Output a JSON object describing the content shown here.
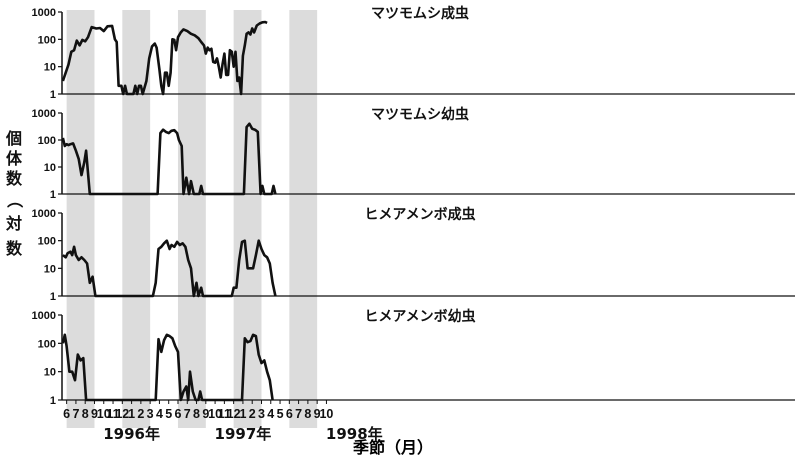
{
  "chart_data": {
    "type": "line",
    "y_scale": "log",
    "ylim": [
      1,
      1000
    ],
    "yticks": [
      1,
      10,
      100,
      1000
    ],
    "ylabel": "個体数（対数）",
    "xlabel": "季節（月）",
    "x_tick_labels": [
      "6",
      "7",
      "8",
      "9",
      "10",
      "11",
      "12",
      "1",
      "2",
      "3",
      "4",
      "5",
      "6",
      "7",
      "8",
      "9",
      "10",
      "11",
      "12",
      "1",
      "2",
      "3",
      "4",
      "5",
      "6",
      "7",
      "8",
      "9",
      "10"
    ],
    "year_labels": [
      "1996年",
      "1997年",
      "1998年"
    ],
    "shaded_months": [
      "1996-06..1996-08",
      "1996-12..1997-02",
      "1997-06..1997-08",
      "1997-12..1998-02",
      "1998-06..1998-08"
    ],
    "panels": [
      {
        "title": "マツモムシ成虫",
        "points": [
          [
            5.6,
            3
          ],
          [
            5.9,
            6
          ],
          [
            6.2,
            12
          ],
          [
            6.5,
            35
          ],
          [
            6.8,
            40
          ],
          [
            7.1,
            90
          ],
          [
            7.4,
            60
          ],
          [
            7.7,
            95
          ],
          [
            8.0,
            85
          ],
          [
            8.3,
            120
          ],
          [
            8.7,
            280
          ],
          [
            9.2,
            250
          ],
          [
            9.6,
            260
          ],
          [
            10.0,
            200
          ],
          [
            10.4,
            300
          ],
          [
            10.9,
            310
          ],
          [
            11.2,
            100
          ],
          [
            11.4,
            80
          ],
          [
            11.6,
            2
          ],
          [
            11.9,
            2
          ],
          [
            12.1,
            1
          ],
          [
            12.3,
            2
          ],
          [
            12.5,
            1
          ],
          [
            13.2,
            1
          ],
          [
            13.4,
            2
          ],
          [
            13.6,
            1
          ],
          [
            13.8,
            2
          ],
          [
            14.0,
            2
          ],
          [
            14.2,
            1
          ],
          [
            14.6,
            3
          ],
          [
            14.9,
            20
          ],
          [
            15.2,
            55
          ],
          [
            15.5,
            70
          ],
          [
            15.7,
            50
          ],
          [
            16.0,
            8
          ],
          [
            16.2,
            2
          ],
          [
            16.4,
            1
          ],
          [
            16.6,
            6
          ],
          [
            16.8,
            6
          ],
          [
            17.0,
            2
          ],
          [
            17.2,
            6
          ],
          [
            17.4,
            100
          ],
          [
            17.6,
            95
          ],
          [
            17.8,
            40
          ],
          [
            18.0,
            120
          ],
          [
            18.3,
            180
          ],
          [
            18.6,
            230
          ],
          [
            19.0,
            200
          ],
          [
            19.4,
            160
          ],
          [
            19.8,
            140
          ],
          [
            20.2,
            110
          ],
          [
            20.5,
            80
          ],
          [
            20.8,
            60
          ],
          [
            21.0,
            30
          ],
          [
            21.2,
            50
          ],
          [
            21.4,
            40
          ],
          [
            21.6,
            45
          ],
          [
            21.8,
            15
          ],
          [
            22.0,
            14
          ],
          [
            22.2,
            20
          ],
          [
            22.4,
            10
          ],
          [
            22.6,
            4
          ],
          [
            22.8,
            12
          ],
          [
            23.0,
            30
          ],
          [
            23.2,
            5
          ],
          [
            23.4,
            5
          ],
          [
            23.6,
            40
          ],
          [
            23.8,
            35
          ],
          [
            24.0,
            10
          ],
          [
            24.2,
            35
          ],
          [
            24.4,
            3
          ],
          [
            24.6,
            4
          ],
          [
            24.8,
            1
          ],
          [
            25.0,
            25
          ],
          [
            25.2,
            60
          ],
          [
            25.4,
            160
          ],
          [
            25.6,
            180
          ],
          [
            25.8,
            150
          ],
          [
            26.0,
            250
          ],
          [
            26.2,
            180
          ],
          [
            26.5,
            320
          ],
          [
            26.8,
            380
          ],
          [
            27.1,
            420
          ],
          [
            27.4,
            430
          ],
          [
            27.6,
            400
          ]
        ]
      },
      {
        "title": "マツモムシ幼虫",
        "points": [
          [
            5.6,
            120
          ],
          [
            5.8,
            60
          ],
          [
            6.0,
            70
          ],
          [
            6.2,
            65
          ],
          [
            6.4,
            70
          ],
          [
            6.7,
            75
          ],
          [
            7.0,
            40
          ],
          [
            7.3,
            20
          ],
          [
            7.6,
            5
          ],
          [
            7.9,
            15
          ],
          [
            8.1,
            40
          ],
          [
            8.5,
            1
          ],
          [
            15.8,
            1
          ],
          [
            16.1,
            180
          ],
          [
            16.4,
            240
          ],
          [
            16.7,
            200
          ],
          [
            17.0,
            180
          ],
          [
            17.3,
            220
          ],
          [
            17.6,
            230
          ],
          [
            17.9,
            180
          ],
          [
            18.1,
            100
          ],
          [
            18.4,
            60
          ],
          [
            18.6,
            1
          ],
          [
            18.9,
            4
          ],
          [
            19.2,
            1
          ],
          [
            19.4,
            3
          ],
          [
            19.7,
            1
          ],
          [
            20.3,
            1
          ],
          [
            20.5,
            2
          ],
          [
            20.7,
            1
          ],
          [
            25.1,
            1
          ],
          [
            25.4,
            300
          ],
          [
            25.7,
            400
          ],
          [
            26.0,
            260
          ],
          [
            26.3,
            240
          ],
          [
            26.6,
            200
          ],
          [
            26.9,
            1
          ],
          [
            27.1,
            2
          ],
          [
            27.3,
            1
          ],
          [
            28.1,
            1
          ],
          [
            28.3,
            2
          ],
          [
            28.5,
            1
          ]
        ]
      },
      {
        "title": "ヒメアメンボ成虫",
        "points": [
          [
            5.6,
            30
          ],
          [
            5.9,
            25
          ],
          [
            6.1,
            35
          ],
          [
            6.4,
            40
          ],
          [
            6.6,
            30
          ],
          [
            6.8,
            60
          ],
          [
            7.0,
            30
          ],
          [
            7.3,
            20
          ],
          [
            7.6,
            25
          ],
          [
            7.9,
            20
          ],
          [
            8.2,
            15
          ],
          [
            8.5,
            3
          ],
          [
            8.8,
            5
          ],
          [
            9.1,
            1
          ],
          [
            15.3,
            1
          ],
          [
            15.6,
            3
          ],
          [
            15.9,
            50
          ],
          [
            16.2,
            60
          ],
          [
            16.5,
            80
          ],
          [
            16.8,
            100
          ],
          [
            17.1,
            50
          ],
          [
            17.3,
            70
          ],
          [
            17.6,
            60
          ],
          [
            17.9,
            90
          ],
          [
            18.2,
            70
          ],
          [
            18.5,
            80
          ],
          [
            18.8,
            60
          ],
          [
            19.1,
            20
          ],
          [
            19.4,
            10
          ],
          [
            19.7,
            1
          ],
          [
            20.0,
            3
          ],
          [
            20.2,
            1
          ],
          [
            20.5,
            2
          ],
          [
            20.7,
            1
          ],
          [
            23.8,
            1
          ],
          [
            24.0,
            2
          ],
          [
            24.3,
            2
          ],
          [
            24.6,
            20
          ],
          [
            24.9,
            90
          ],
          [
            25.2,
            100
          ],
          [
            25.5,
            10
          ],
          [
            25.8,
            10
          ],
          [
            26.1,
            10
          ],
          [
            26.4,
            30
          ],
          [
            26.7,
            100
          ],
          [
            27.0,
            50
          ],
          [
            27.3,
            30
          ],
          [
            27.6,
            25
          ],
          [
            27.9,
            15
          ],
          [
            28.2,
            3
          ],
          [
            28.5,
            1
          ]
        ]
      },
      {
        "title": "ヒメアメンボ幼虫",
        "points": [
          [
            5.6,
            100
          ],
          [
            5.8,
            200
          ],
          [
            6.0,
            80
          ],
          [
            6.3,
            10
          ],
          [
            6.6,
            10
          ],
          [
            6.9,
            5
          ],
          [
            7.2,
            40
          ],
          [
            7.5,
            25
          ],
          [
            7.8,
            30
          ],
          [
            8.1,
            1
          ],
          [
            15.6,
            1
          ],
          [
            15.9,
            140
          ],
          [
            16.2,
            50
          ],
          [
            16.5,
            130
          ],
          [
            16.8,
            200
          ],
          [
            17.1,
            180
          ],
          [
            17.4,
            150
          ],
          [
            17.7,
            80
          ],
          [
            18.0,
            50
          ],
          [
            18.3,
            1
          ],
          [
            18.6,
            2
          ],
          [
            18.9,
            3
          ],
          [
            19.1,
            1
          ],
          [
            19.3,
            10
          ],
          [
            19.6,
            2
          ],
          [
            19.9,
            1
          ],
          [
            20.2,
            1
          ],
          [
            20.4,
            2
          ],
          [
            20.6,
            1
          ],
          [
            24.9,
            1
          ],
          [
            25.2,
            150
          ],
          [
            25.5,
            110
          ],
          [
            25.8,
            120
          ],
          [
            26.1,
            200
          ],
          [
            26.4,
            180
          ],
          [
            26.7,
            40
          ],
          [
            27.0,
            20
          ],
          [
            27.3,
            25
          ],
          [
            27.6,
            10
          ],
          [
            27.9,
            5
          ],
          [
            28.2,
            1
          ]
        ]
      }
    ]
  },
  "colors": {
    "shade": "#dcdcdc",
    "line": "#111111",
    "text": "#111111"
  }
}
